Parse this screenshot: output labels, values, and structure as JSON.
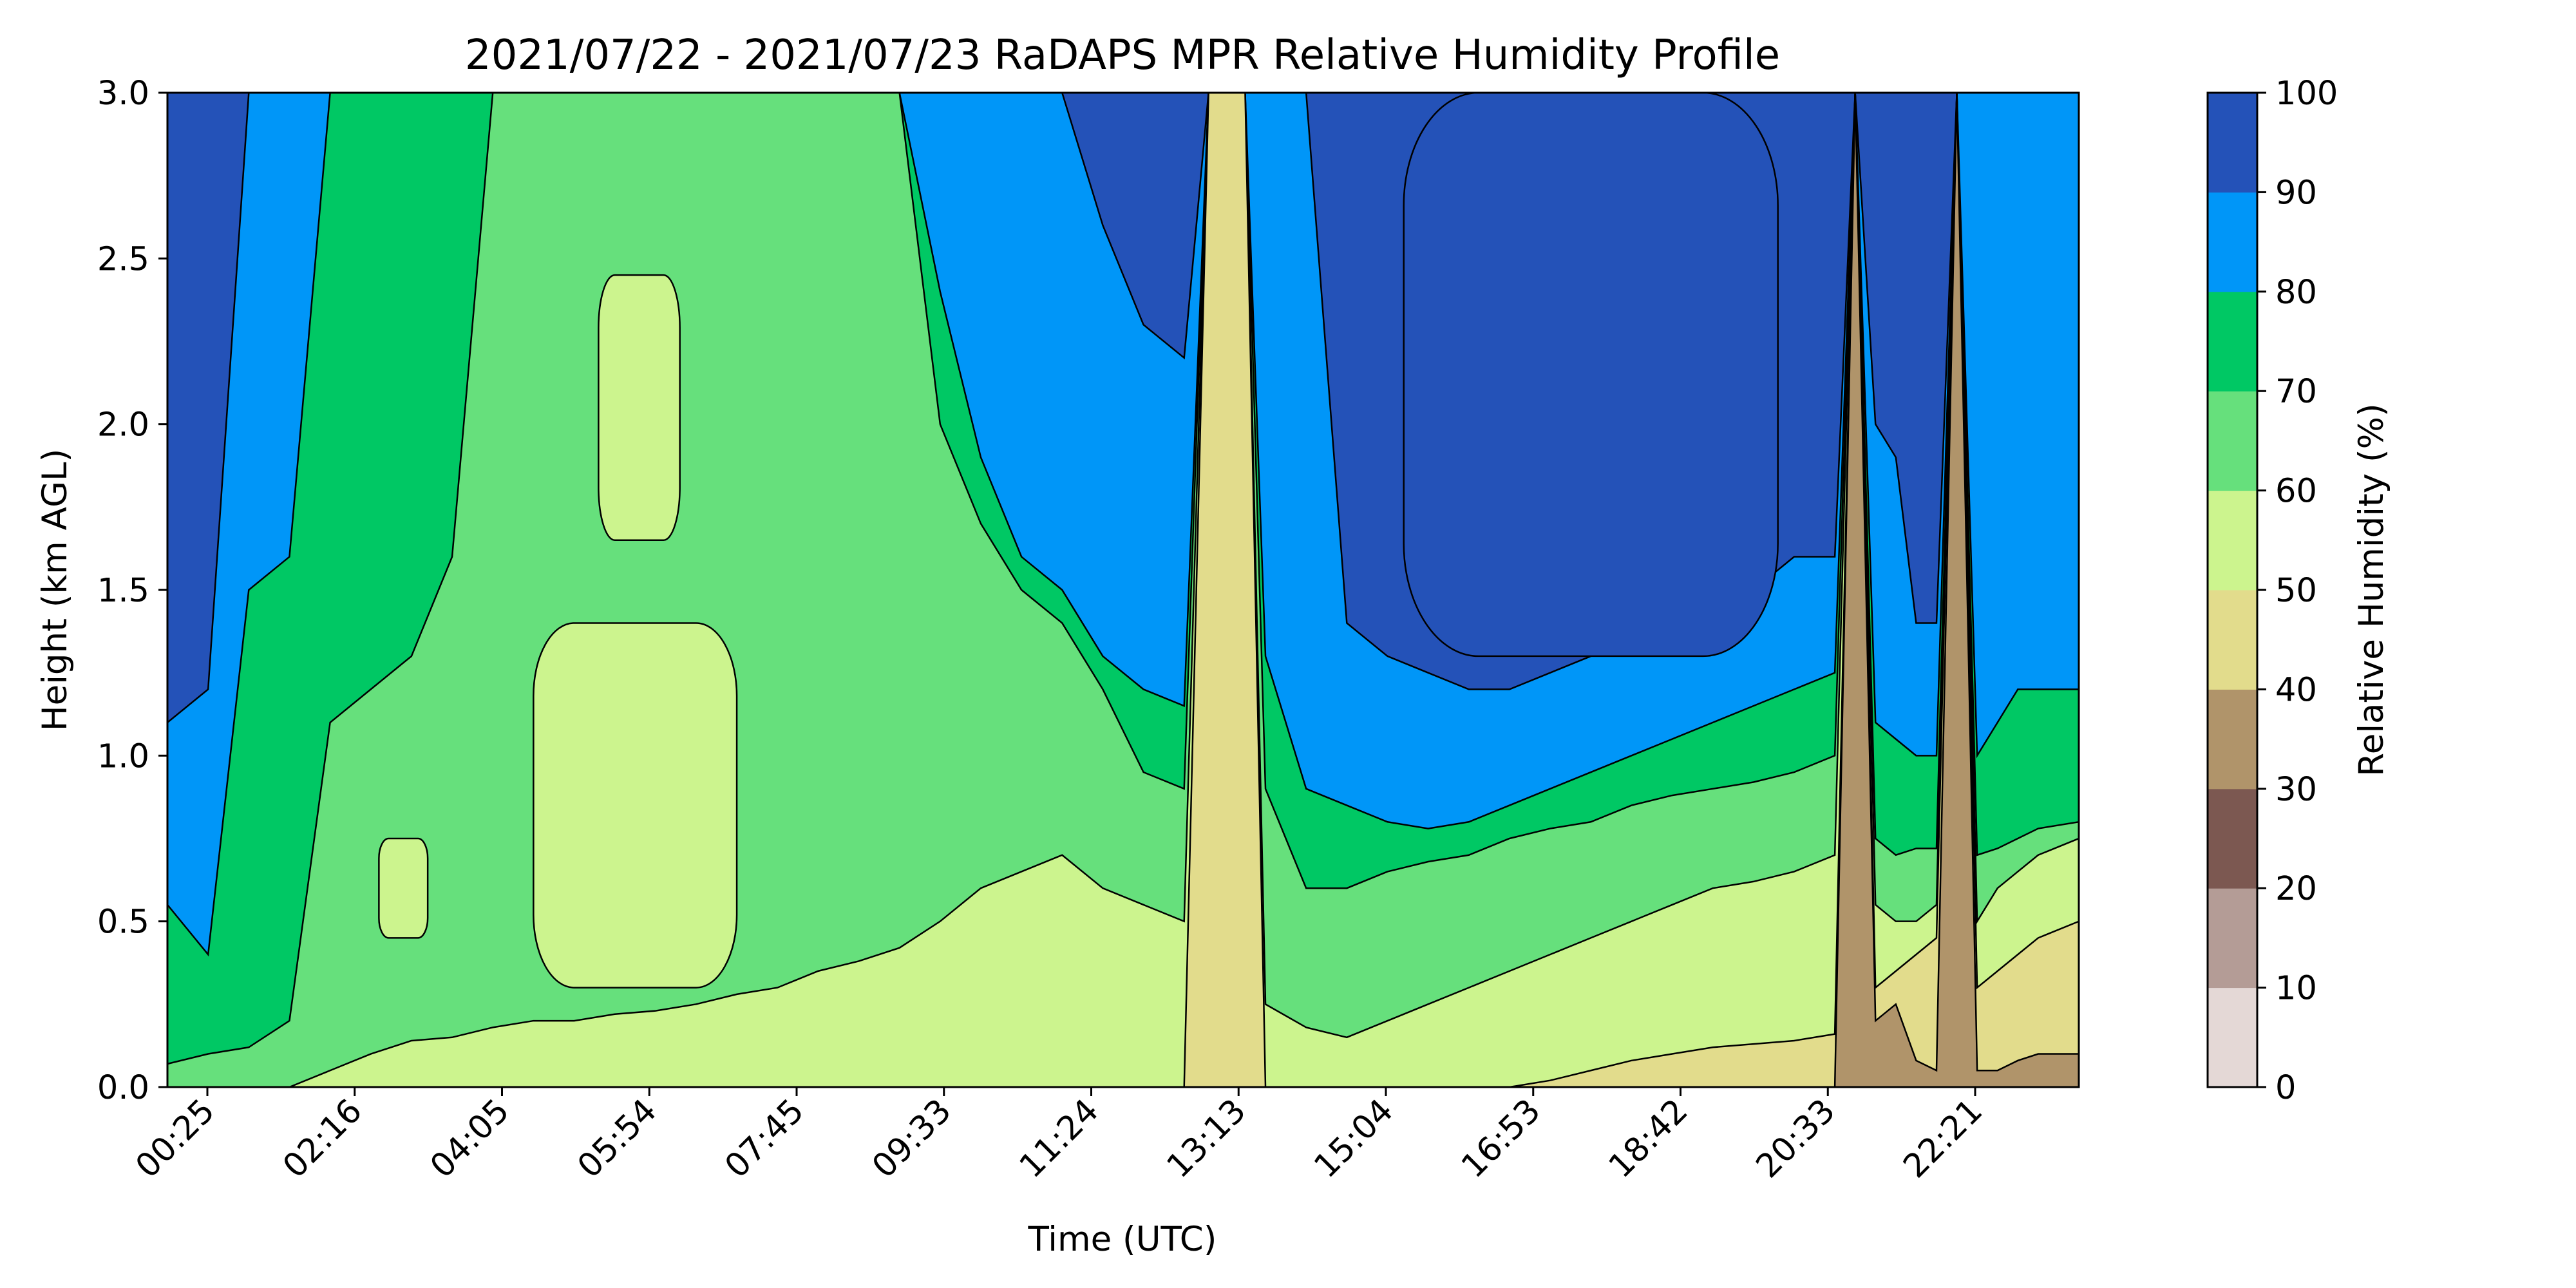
{
  "chart_data": {
    "type": "heatmap",
    "subtype": "filled-contour",
    "title": "2021/07/22 - 2021/07/23 RaDAPS MPR Relative Humidity Profile",
    "xlabel": "Time (UTC)",
    "ylabel": "Height (km AGL)",
    "x_tick_labels": [
      "00:25",
      "02:16",
      "04:05",
      "05:54",
      "07:45",
      "09:33",
      "11:24",
      "13:13",
      "15:04",
      "16:53",
      "18:42",
      "20:33",
      "22:21"
    ],
    "y_ticks": [
      0.0,
      0.5,
      1.0,
      1.5,
      2.0,
      2.5,
      3.0
    ],
    "y_tick_labels": [
      "0.0",
      "0.5",
      "1.0",
      "1.5",
      "2.0",
      "2.5",
      "3.0"
    ],
    "ylim": [
      0,
      3.0
    ],
    "colorbar": {
      "label": "Relative Humidity (%)",
      "ticks": [
        0,
        10,
        20,
        30,
        40,
        50,
        60,
        70,
        80,
        90,
        100
      ],
      "tick_labels": [
        "0",
        "10",
        "20",
        "30",
        "40",
        "50",
        "60",
        "70",
        "80",
        "90",
        "100"
      ],
      "colors": [
        "#e4d8d6",
        "#b49c96",
        "#7c5851",
        "#b0946a",
        "#e2dc8c",
        "#ccf48e",
        "#66e07c",
        "#00c864",
        "#0096f8",
        "#2452b8"
      ]
    },
    "x_hours": [
      0,
      0.5,
      1.0,
      1.5,
      2.0,
      2.5,
      3.0,
      3.5,
      4.0,
      4.5,
      5.0,
      5.5,
      6.0,
      6.5,
      7.0,
      7.5,
      8.0,
      8.5,
      9.0,
      9.5,
      10.0,
      10.5,
      11.0,
      11.5,
      12.0,
      12.5,
      12.8,
      13.0,
      13.25,
      13.5,
      14.0,
      14.5,
      15.0,
      15.5,
      16.0,
      16.5,
      17.0,
      17.5,
      18.0,
      18.5,
      19.0,
      19.5,
      20.0,
      20.5,
      20.75,
      21.0,
      21.25,
      21.5,
      21.75,
      22.0,
      22.25,
      22.5,
      22.75,
      23.0,
      23.5
    ],
    "contour_boundaries_km": {
      "rh_90": [
        1.1,
        1.2,
        3.0,
        3.0,
        3.0,
        3.0,
        3.0,
        3.0,
        3.0,
        3.0,
        3.0,
        3.0,
        3.0,
        3.0,
        3.0,
        3.0,
        3.0,
        3.0,
        3.0,
        3.0,
        3.0,
        3.0,
        3.0,
        2.6,
        2.3,
        2.2,
        3.0,
        3.0,
        3.0,
        3.0,
        3.0,
        1.4,
        1.3,
        1.25,
        1.2,
        1.2,
        1.25,
        1.3,
        1.35,
        1.4,
        1.45,
        1.5,
        1.6,
        1.6,
        3.0,
        2.0,
        1.9,
        1.4,
        1.4,
        3.0,
        3.0,
        3.0,
        3.0,
        3.0,
        3.0
      ],
      "rh_80": [
        0.55,
        0.4,
        1.5,
        1.6,
        3.0,
        3.0,
        3.0,
        3.0,
        3.0,
        3.0,
        3.0,
        3.0,
        3.0,
        3.0,
        3.0,
        3.0,
        3.0,
        3.0,
        3.0,
        2.4,
        1.9,
        1.6,
        1.5,
        1.3,
        1.2,
        1.15,
        3.0,
        3.0,
        3.0,
        1.3,
        0.9,
        0.85,
        0.8,
        0.78,
        0.8,
        0.85,
        0.9,
        0.95,
        1.0,
        1.05,
        1.1,
        1.15,
        1.2,
        1.25,
        3.0,
        1.1,
        1.05,
        1.0,
        1.0,
        3.0,
        1.0,
        1.1,
        1.2,
        1.2,
        1.2
      ],
      "rh_70": [
        0.07,
        0.1,
        0.12,
        0.2,
        1.1,
        1.2,
        1.3,
        1.6,
        3.0,
        3.0,
        3.0,
        3.0,
        3.0,
        3.0,
        3.0,
        3.0,
        3.0,
        3.0,
        3.0,
        2.0,
        1.7,
        1.5,
        1.4,
        1.2,
        0.95,
        0.9,
        3.0,
        3.0,
        3.0,
        0.9,
        0.6,
        0.6,
        0.65,
        0.68,
        0.7,
        0.75,
        0.78,
        0.8,
        0.85,
        0.88,
        0.9,
        0.92,
        0.95,
        1.0,
        3.0,
        0.75,
        0.7,
        0.72,
        0.72,
        3.0,
        0.7,
        0.72,
        0.75,
        0.78,
        0.8
      ],
      "rh_60": [
        0.0,
        0.0,
        0.0,
        0.0,
        0.05,
        0.1,
        0.14,
        0.15,
        0.18,
        0.2,
        0.2,
        0.22,
        0.23,
        0.25,
        0.28,
        0.3,
        0.35,
        0.38,
        0.42,
        0.5,
        0.6,
        0.65,
        0.7,
        0.6,
        0.55,
        0.5,
        3.0,
        3.0,
        3.0,
        0.25,
        0.18,
        0.15,
        0.2,
        0.25,
        0.3,
        0.35,
        0.4,
        0.45,
        0.5,
        0.55,
        0.6,
        0.62,
        0.65,
        0.7,
        3.0,
        0.55,
        0.5,
        0.5,
        0.55,
        3.0,
        0.5,
        0.6,
        0.65,
        0.7,
        0.75
      ],
      "rh_50": [
        0.0,
        0.0,
        0.0,
        0.0,
        0.0,
        0.0,
        0.0,
        0.0,
        0.0,
        0.0,
        0.0,
        0.0,
        0.0,
        0.0,
        0.0,
        0.0,
        0.0,
        0.0,
        0.0,
        0.0,
        0.0,
        0.0,
        0.0,
        0.0,
        0.0,
        0.0,
        3.0,
        3.0,
        3.0,
        0.0,
        0.0,
        0.0,
        0.0,
        0.0,
        0.0,
        0.0,
        0.02,
        0.05,
        0.08,
        0.1,
        0.12,
        0.13,
        0.14,
        0.16,
        3.0,
        0.3,
        0.35,
        0.4,
        0.45,
        3.0,
        0.3,
        0.35,
        0.4,
        0.45,
        0.5
      ],
      "rh_40": [
        0.0,
        0.0,
        0.0,
        0.0,
        0.0,
        0.0,
        0.0,
        0.0,
        0.0,
        0.0,
        0.0,
        0.0,
        0.0,
        0.0,
        0.0,
        0.0,
        0.0,
        0.0,
        0.0,
        0.0,
        0.0,
        0.0,
        0.0,
        0.0,
        0.0,
        0.0,
        0.0,
        0.0,
        0.0,
        0.0,
        0.0,
        0.0,
        0.0,
        0.0,
        0.0,
        0.0,
        0.0,
        0.0,
        0.0,
        0.0,
        0.0,
        0.0,
        0.0,
        0.0,
        3.0,
        0.2,
        0.25,
        0.08,
        0.05,
        3.0,
        0.05,
        0.05,
        0.08,
        0.1,
        0.1
      ],
      "rh_30": [
        0.0,
        0.0,
        0.0,
        0.0,
        0.0,
        0.0,
        0.0,
        0.0,
        0.0,
        0.0,
        0.0,
        0.0,
        0.0,
        0.0,
        0.0,
        0.0,
        0.0,
        0.0,
        0.0,
        0.0,
        0.0,
        0.0,
        0.0,
        0.0,
        0.0,
        0.0,
        0.0,
        0.0,
        0.0,
        0.0,
        0.0,
        0.0,
        0.0,
        0.0,
        0.0,
        0.0,
        0.0,
        0.0,
        0.0,
        0.0,
        0.0,
        0.0,
        0.0,
        0.0,
        0.0,
        0.0,
        0.0,
        0.0,
        0.0,
        0.0,
        0.0,
        0.0,
        0.0,
        0.0,
        0.0
      ]
    },
    "regions": [
      {
        "rh_band": "50-60",
        "x_range": [
          4.5,
          7.0
        ],
        "y_range": [
          0.3,
          1.4
        ]
      },
      {
        "rh_band": "50-60",
        "x_range": [
          5.3,
          6.3
        ],
        "y_range": [
          1.65,
          2.45
        ]
      },
      {
        "rh_band": "50-60",
        "x_range": [
          2.6,
          3.2
        ],
        "y_range": [
          0.45,
          0.75
        ]
      },
      {
        "rh_band": "90-100",
        "x_range": [
          15.2,
          19.8
        ],
        "y_range": [
          1.3,
          3.0
        ]
      }
    ]
  }
}
